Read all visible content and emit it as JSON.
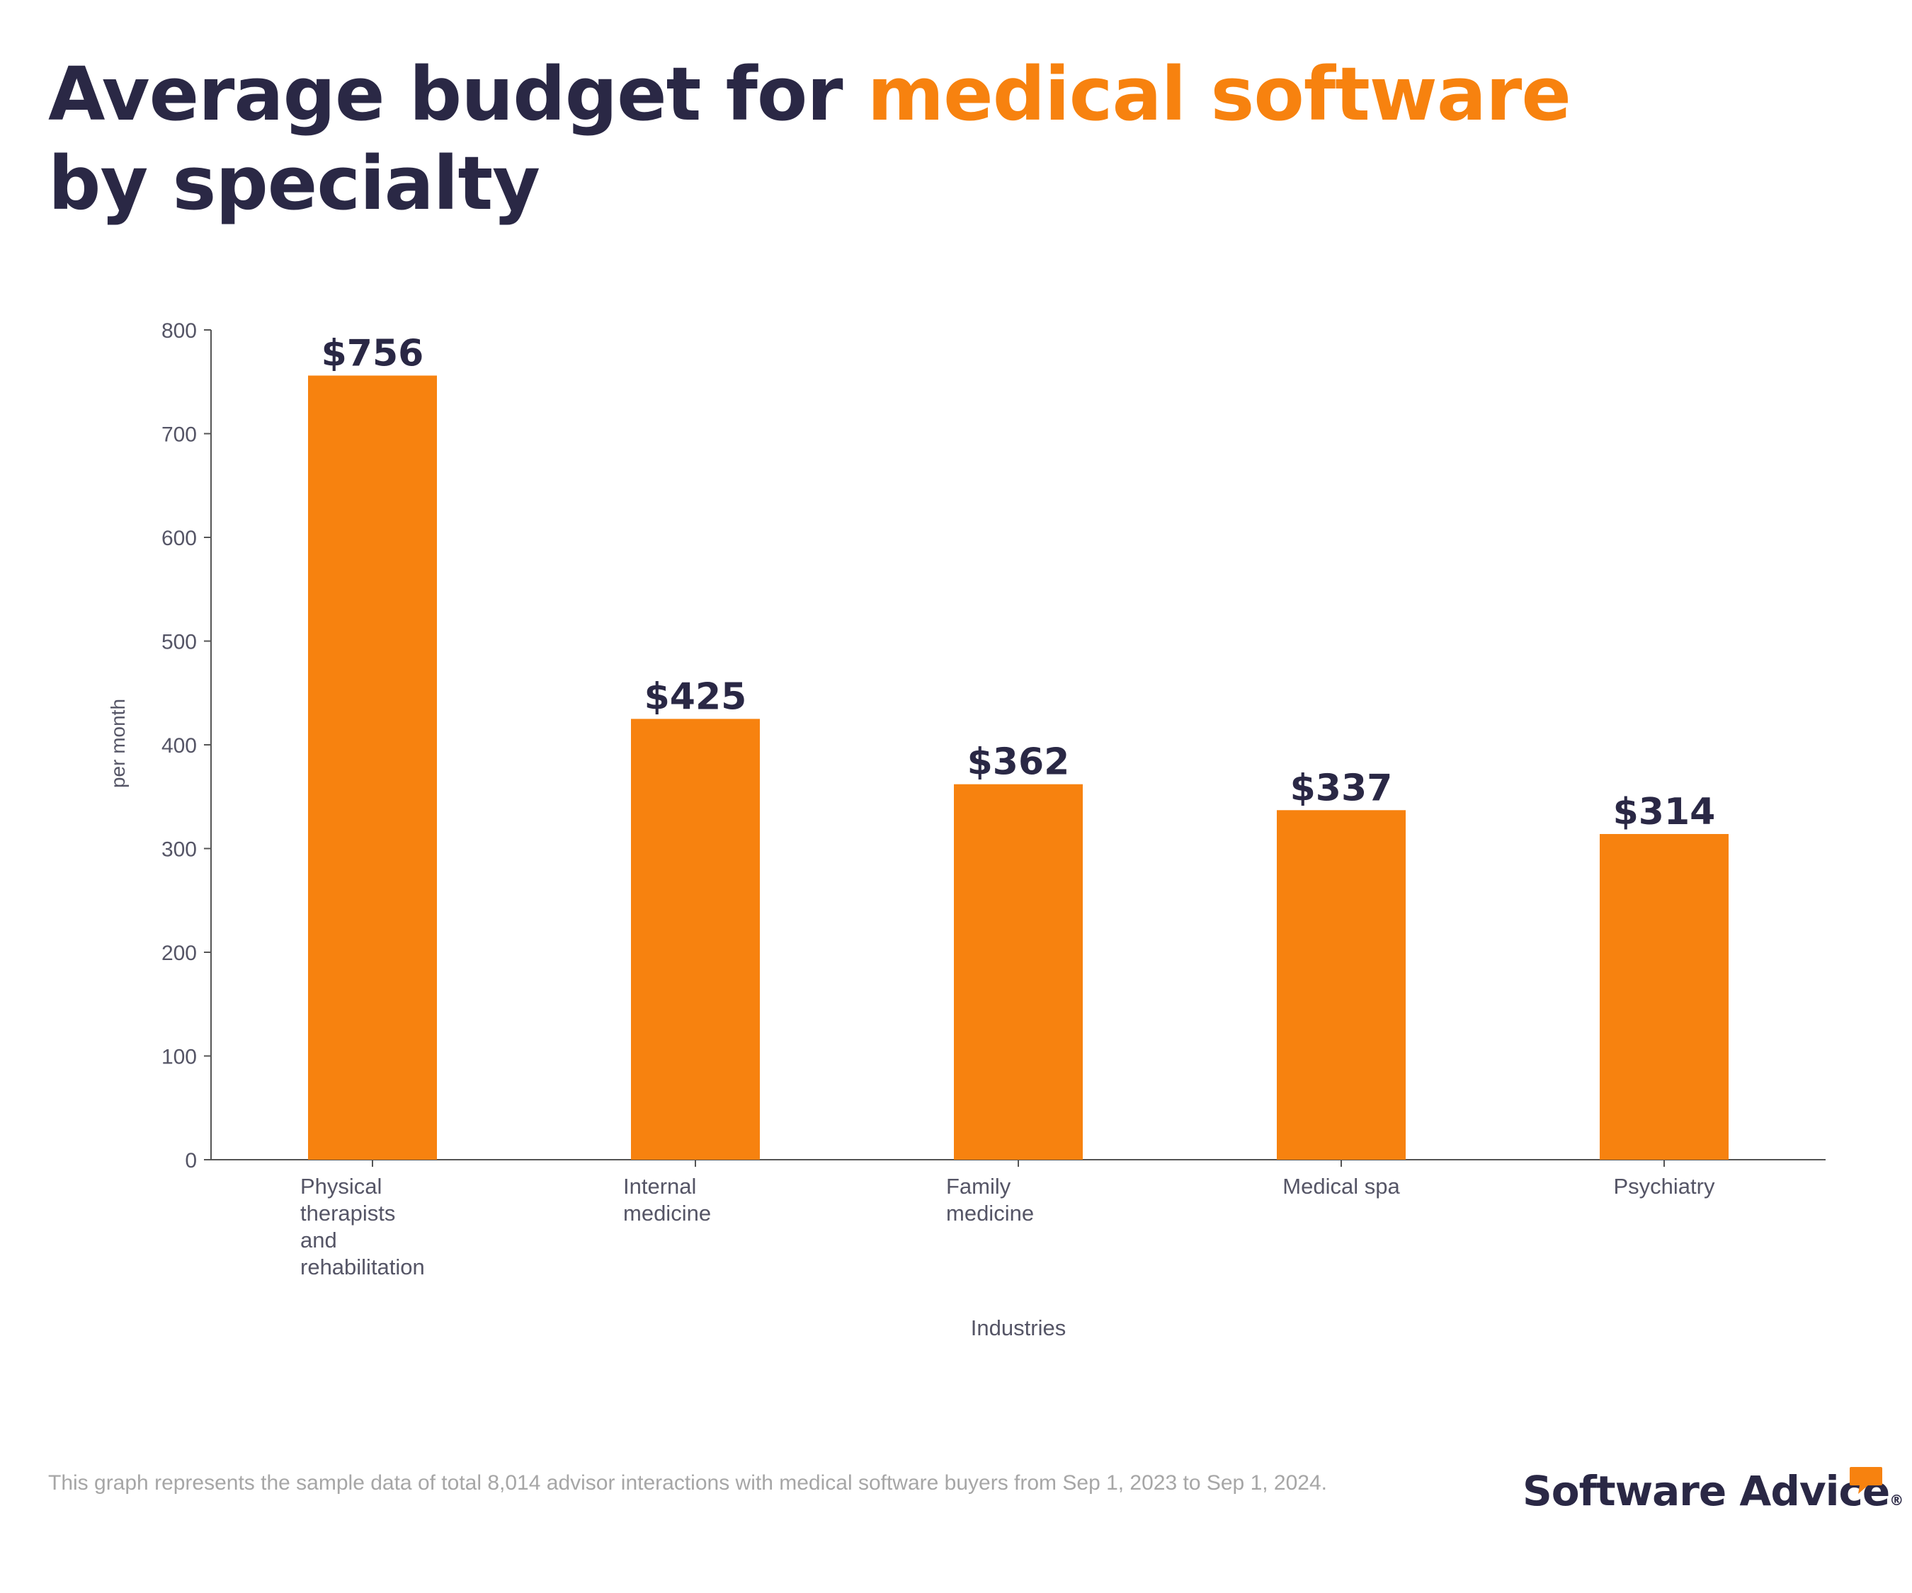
{
  "title": {
    "before": "Average budget for ",
    "highlight": "medical software",
    "after": " by specialty"
  },
  "chart_data": {
    "type": "bar",
    "categories": [
      "Physical therapists and rehabilitation",
      "Internal medicine",
      "Family medicine",
      "Medical spa",
      "Psychiatry"
    ],
    "category_label_lines": [
      [
        "Physical",
        "therapists",
        "and",
        "rehabilitation"
      ],
      [
        "Internal",
        "medicine"
      ],
      [
        "Family",
        "medicine"
      ],
      [
        "Medical spa"
      ],
      [
        "Psychiatry"
      ]
    ],
    "values": [
      756,
      425,
      362,
      337,
      314
    ],
    "data_labels": [
      "$756",
      "$425",
      "$362",
      "$337",
      "$314"
    ],
    "xlabel": "Industries",
    "ylabel": "per month",
    "ylim": [
      0,
      800
    ],
    "yticks": [
      0,
      100,
      200,
      300,
      400,
      500,
      600,
      700,
      800
    ],
    "grid": false,
    "legend": "none",
    "colors": {
      "bar": "#f7820f",
      "text": "#2a2845",
      "axis": "#555555",
      "tick": "#555566"
    }
  },
  "footnote": "This graph represents the sample data of total 8,014 advisor interactions with medical software buyers from Sep 1, 2023 to Sep 1, 2024.",
  "logo": {
    "text": "Software Advice",
    "registered": "®"
  }
}
